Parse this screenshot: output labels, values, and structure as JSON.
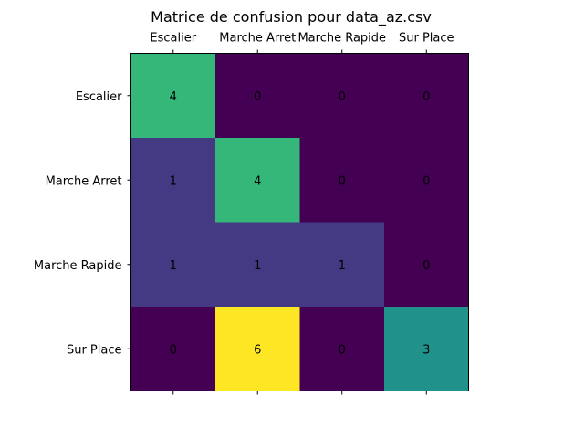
{
  "chart_data": {
    "type": "heatmap",
    "title": "Matrice de confusion pour data_az.csv",
    "x_categories": [
      "Escalier",
      "Marche Arret",
      "Marche Rapide",
      "Sur Place"
    ],
    "y_categories": [
      "Escalier",
      "Marche Arret",
      "Marche Rapide",
      "Sur Place"
    ],
    "values": [
      [
        4,
        0,
        0,
        0
      ],
      [
        1,
        4,
        0,
        0
      ],
      [
        1,
        1,
        1,
        0
      ],
      [
        0,
        6,
        0,
        3
      ]
    ],
    "colormap": "viridis",
    "value_range": [
      0,
      6
    ],
    "x_tick_position": "top",
    "grid": false
  }
}
